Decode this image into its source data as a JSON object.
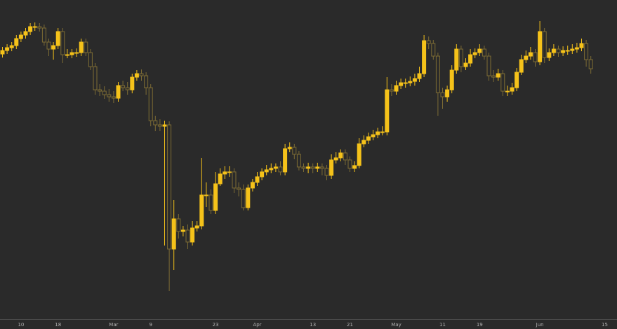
{
  "chart_data": {
    "type": "candlestick",
    "categories": [
      null,
      null,
      null,
      null,
      "10",
      null,
      null,
      null,
      null,
      null,
      null,
      null,
      "18",
      null,
      null,
      null,
      null,
      null,
      null,
      null,
      null,
      null,
      null,
      null,
      "Mar",
      null,
      null,
      null,
      null,
      null,
      null,
      null,
      "9",
      null,
      null,
      null,
      null,
      null,
      null,
      null,
      null,
      null,
      null,
      null,
      null,
      null,
      "23",
      null,
      null,
      null,
      null,
      null,
      null,
      null,
      null,
      "Apr",
      null,
      null,
      null,
      null,
      null,
      null,
      null,
      null,
      null,
      null,
      null,
      "13",
      null,
      null,
      null,
      null,
      null,
      null,
      null,
      "21",
      null,
      null,
      null,
      null,
      null,
      null,
      null,
      null,
      null,
      "May",
      null,
      null,
      null,
      null,
      null,
      null,
      null,
      null,
      null,
      "11",
      null,
      null,
      null,
      null,
      null,
      null,
      null,
      "19",
      null,
      null,
      null,
      null,
      null,
      null,
      null,
      null,
      null,
      null,
      null,
      null,
      "Jun",
      null,
      null,
      null,
      null,
      null,
      null,
      null,
      null,
      null,
      null,
      null,
      null,
      null,
      "15"
    ],
    "open": [
      378,
      383,
      387,
      390,
      400,
      405,
      410,
      417,
      417,
      415,
      395,
      385,
      390,
      410,
      377,
      377,
      380,
      380,
      395,
      380,
      360,
      327,
      325,
      320,
      317,
      315,
      333,
      330,
      327,
      345,
      350,
      347,
      330,
      283,
      277,
      275,
      277,
      100,
      143,
      125,
      127,
      110,
      130,
      133,
      177,
      177,
      155,
      193,
      207,
      210,
      210,
      187,
      185,
      159,
      187,
      195,
      203,
      210,
      213,
      215,
      217,
      210,
      243,
      245,
      235,
      217,
      215,
      217,
      215,
      217,
      215,
      205,
      227,
      230,
      237,
      227,
      215,
      219,
      250,
      255,
      260,
      263,
      267,
      267,
      327,
      325,
      333,
      337,
      337,
      339,
      343,
      350,
      397,
      393,
      375,
      323,
      317,
      327,
      355,
      385,
      360,
      365,
      377,
      380,
      385,
      375,
      347,
      345,
      350,
      325,
      325,
      330,
      352,
      370,
      375,
      380,
      367,
      410,
      373,
      380,
      385,
      380,
      383,
      383,
      385,
      387,
      393,
      370,
      null,
      null,
      null
    ],
    "high": [
      388,
      392,
      395,
      405,
      410,
      415,
      422,
      423,
      422,
      420,
      400,
      395,
      415,
      415,
      385,
      385,
      386,
      400,
      400,
      385,
      365,
      335,
      332,
      328,
      325,
      338,
      340,
      338,
      350,
      355,
      356,
      352,
      335,
      290,
      285,
      283,
      282,
      170,
      150,
      133,
      135,
      140,
      140,
      230,
      195,
      185,
      210,
      215,
      218,
      218,
      215,
      195,
      192,
      192,
      200,
      210,
      215,
      220,
      222,
      222,
      225,
      250,
      252,
      250,
      240,
      222,
      223,
      222,
      223,
      222,
      220,
      235,
      238,
      242,
      242,
      232,
      225,
      258,
      262,
      266,
      270,
      273,
      275,
      345,
      335,
      340,
      343,
      343,
      346,
      350,
      360,
      405,
      403,
      398,
      380,
      330,
      333,
      362,
      392,
      390,
      372,
      385,
      386,
      392,
      390,
      380,
      355,
      357,
      355,
      333,
      337,
      358,
      377,
      383,
      388,
      385,
      425,
      415,
      386,
      392,
      390,
      389,
      390,
      392,
      394,
      400,
      398,
      375,
      null,
      null,
      null
    ],
    "low": [
      373,
      378,
      382,
      385,
      395,
      400,
      405,
      411,
      410,
      390,
      375,
      370,
      385,
      365,
      372,
      372,
      374,
      375,
      375,
      355,
      320,
      318,
      314,
      310,
      308,
      310,
      325,
      320,
      322,
      340,
      340,
      320,
      275,
      268,
      268,
      105,
      40,
      70,
      115,
      118,
      100,
      105,
      125,
      128,
      160,
      150,
      150,
      190,
      200,
      203,
      180,
      175,
      155,
      155,
      182,
      190,
      198,
      205,
      208,
      210,
      205,
      205,
      238,
      228,
      212,
      210,
      208,
      208,
      210,
      205,
      198,
      200,
      222,
      225,
      220,
      210,
      210,
      215,
      245,
      250,
      255,
      258,
      262,
      262,
      318,
      320,
      328,
      330,
      332,
      333,
      338,
      345,
      385,
      370,
      290,
      300,
      310,
      322,
      350,
      352,
      355,
      360,
      372,
      375,
      370,
      340,
      338,
      340,
      318,
      318,
      320,
      325,
      348,
      365,
      370,
      360,
      362,
      365,
      368,
      375,
      374,
      375,
      377,
      378,
      380,
      382,
      360,
      350,
      null,
      null,
      null
    ],
    "close": [
      383,
      387,
      390,
      400,
      405,
      410,
      417,
      417,
      415,
      395,
      385,
      390,
      410,
      377,
      377,
      380,
      380,
      395,
      380,
      360,
      327,
      325,
      320,
      317,
      315,
      333,
      330,
      327,
      345,
      350,
      347,
      330,
      283,
      277,
      275,
      277,
      100,
      143,
      125,
      127,
      110,
      130,
      133,
      177,
      177,
      155,
      193,
      207,
      210,
      210,
      187,
      185,
      159,
      187,
      195,
      203,
      210,
      213,
      215,
      217,
      210,
      243,
      245,
      235,
      217,
      215,
      217,
      215,
      217,
      215,
      205,
      227,
      230,
      237,
      227,
      215,
      219,
      250,
      255,
      260,
      263,
      267,
      267,
      327,
      325,
      333,
      337,
      337,
      339,
      343,
      350,
      397,
      393,
      375,
      323,
      317,
      327,
      355,
      385,
      360,
      365,
      377,
      380,
      385,
      375,
      347,
      345,
      350,
      325,
      325,
      330,
      352,
      370,
      375,
      380,
      367,
      410,
      373,
      380,
      385,
      380,
      383,
      383,
      385,
      387,
      393,
      370,
      357,
      null,
      null,
      null
    ],
    "up_color": "#f5c21a",
    "down_color": "#7d6c34",
    "ylim": [
      0,
      455
    ]
  }
}
